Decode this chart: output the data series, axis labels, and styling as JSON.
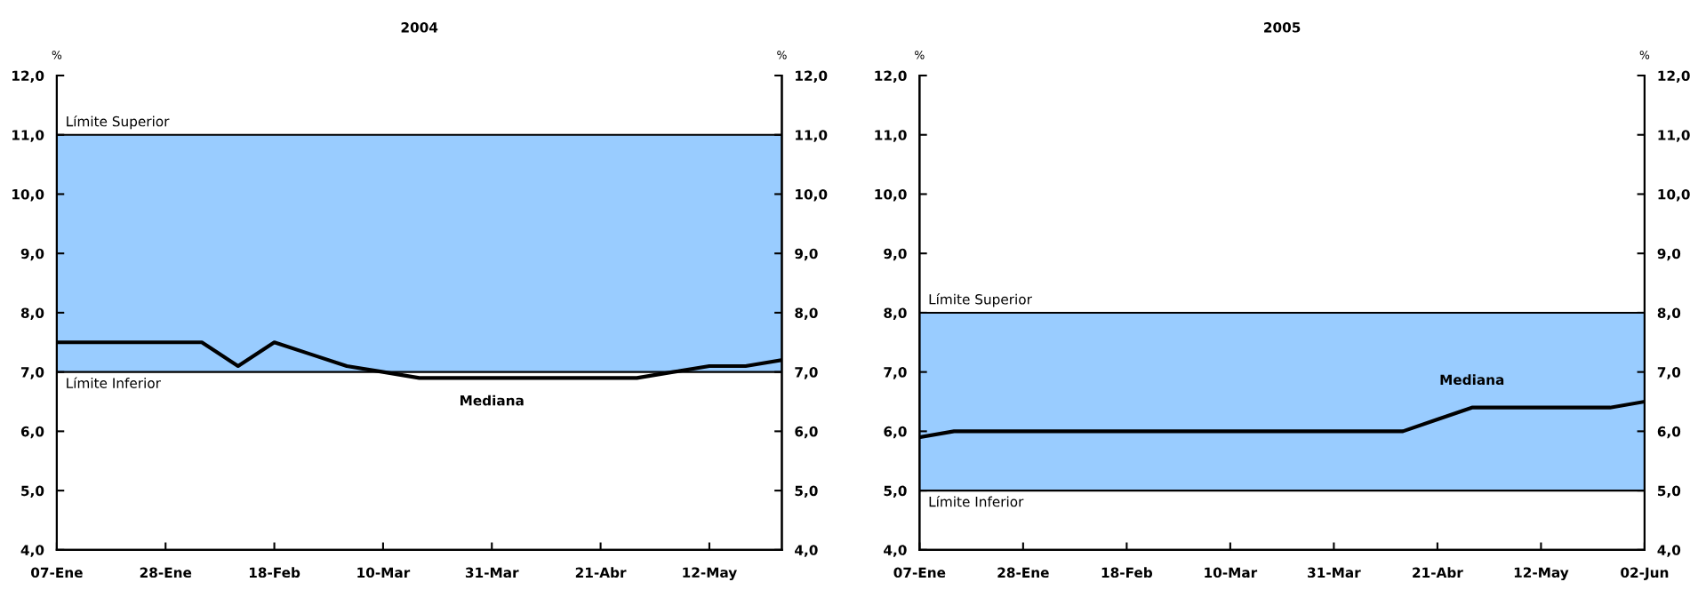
{
  "chart_data": [
    {
      "type": "line",
      "title": "2004",
      "ylabel": "%",
      "y2label": "%",
      "categories": [
        "07-Ene",
        null,
        null,
        "28-Ene",
        null,
        null,
        "18-Feb",
        null,
        null,
        "10-Mar",
        null,
        null,
        "31-Mar",
        null,
        null,
        "21-Abr",
        null,
        null,
        "12-May",
        null,
        null
      ],
      "series": [
        {
          "color": "#000000",
          "values": [
            7.5,
            7.5,
            7.5,
            7.5,
            7.5,
            7.1,
            7.5,
            7.3,
            7.1,
            7.0,
            6.9,
            6.9,
            6.9,
            6.9,
            6.9,
            6.9,
            6.9,
            7.0,
            7.1,
            7.1,
            7.2
          ]
        }
      ],
      "ylim": [
        4,
        12
      ],
      "yticks": [
        {
          "value": 4,
          "label": "4,0"
        },
        {
          "value": 5,
          "label": "5,0"
        },
        {
          "value": 6,
          "label": "6,0"
        },
        {
          "value": 7,
          "label": "7,0"
        },
        {
          "value": 8,
          "label": "8,0"
        },
        {
          "value": 9,
          "label": "9,0"
        },
        {
          "value": 10,
          "label": "10,0"
        },
        {
          "value": 11,
          "label": "11,0"
        },
        {
          "value": 12,
          "label": "12,0"
        }
      ],
      "y2lim": [
        4,
        12
      ],
      "y2ticks": [
        {
          "value": 4,
          "label": "4,0"
        },
        {
          "value": 5,
          "label": "5,0"
        },
        {
          "value": 6,
          "label": "6,0"
        },
        {
          "value": 7,
          "label": "7,0"
        },
        {
          "value": 8,
          "label": "8,0"
        },
        {
          "value": 9,
          "label": "9,0"
        },
        {
          "value": 10,
          "label": "10,0"
        },
        {
          "value": 11,
          "label": "11,0"
        },
        {
          "value": 12,
          "label": "12,0"
        }
      ],
      "bands": [
        {
          "axis": "y",
          "from": 7,
          "to": 11,
          "color": "#99ccff"
        }
      ],
      "ref_lines": [
        {
          "axis": "y",
          "value": 11,
          "label": "Límite Superior"
        },
        {
          "axis": "y",
          "value": 7,
          "label": "Límite Inferior"
        }
      ],
      "annotations": [
        "Mediana"
      ],
      "grid": false,
      "legend": false
    },
    {
      "type": "line",
      "title": "2005",
      "ylabel": "%",
      "y2label": "%",
      "categories": [
        "07-Ene",
        null,
        null,
        "28-Ene",
        null,
        null,
        "18-Feb",
        null,
        null,
        "10-Mar",
        null,
        null,
        "31-Mar",
        null,
        null,
        "21-Abr",
        null,
        null,
        "12-May",
        null,
        null,
        "02-Jun"
      ],
      "series": [
        {
          "color": "#000000",
          "values": [
            5.9,
            6.0,
            6.0,
            6.0,
            6.0,
            6.0,
            6.0,
            6.0,
            6.0,
            6.0,
            6.0,
            6.0,
            6.0,
            6.0,
            6.0,
            6.2,
            6.4,
            6.4,
            6.4,
            6.4,
            6.4,
            6.5
          ]
        }
      ],
      "ylim": [
        4,
        12
      ],
      "yticks": [
        {
          "value": 4,
          "label": "4,0"
        },
        {
          "value": 5,
          "label": "5,0"
        },
        {
          "value": 6,
          "label": "6,0"
        },
        {
          "value": 7,
          "label": "7,0"
        },
        {
          "value": 8,
          "label": "8,0"
        },
        {
          "value": 9,
          "label": "9,0"
        },
        {
          "value": 10,
          "label": "10,0"
        },
        {
          "value": 11,
          "label": "11,0"
        },
        {
          "value": 12,
          "label": "12,0"
        }
      ],
      "y2lim": [
        4,
        12
      ],
      "y2ticks": [
        {
          "value": 4,
          "label": "4,0"
        },
        {
          "value": 5,
          "label": "5,0"
        },
        {
          "value": 6,
          "label": "6,0"
        },
        {
          "value": 7,
          "label": "7,0"
        },
        {
          "value": 8,
          "label": "8,0"
        },
        {
          "value": 9,
          "label": "9,0"
        },
        {
          "value": 10,
          "label": "10,0"
        },
        {
          "value": 11,
          "label": "11,0"
        },
        {
          "value": 12,
          "label": "12,0"
        }
      ],
      "bands": [
        {
          "axis": "y",
          "from": 5,
          "to": 8,
          "color": "#99ccff"
        }
      ],
      "ref_lines": [
        {
          "axis": "y",
          "value": 8,
          "label": "Límite Superior"
        },
        {
          "axis": "y",
          "value": 5,
          "label": "Límite Inferior"
        }
      ],
      "annotations": [
        "Mediana"
      ],
      "grid": false,
      "legend": false
    }
  ]
}
